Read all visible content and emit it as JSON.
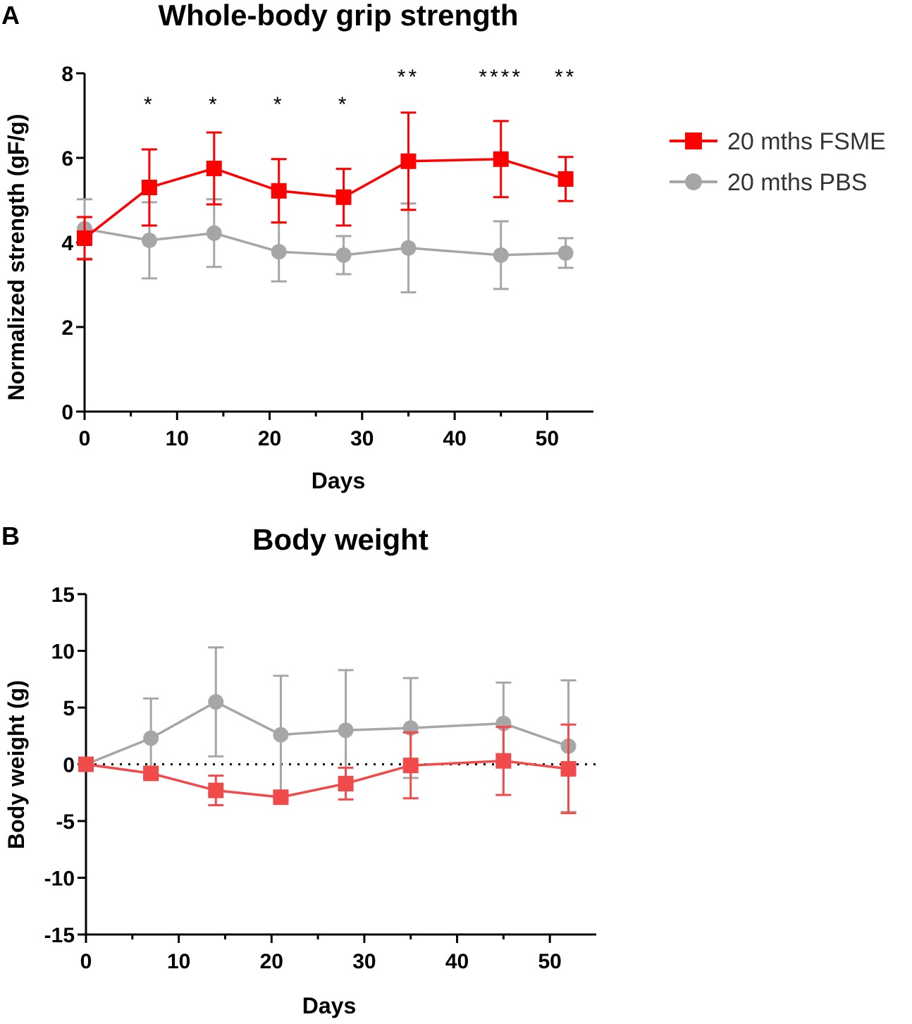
{
  "figure": {
    "panel_a_label": "A",
    "panel_b_label": "B"
  },
  "legend": {
    "entries": [
      {
        "label": "20 mths FSME",
        "color": "#ff0000",
        "marker": "square"
      },
      {
        "label": "20 mths PBS",
        "color": "#a6a6a6",
        "marker": "circle"
      }
    ]
  },
  "chart_data": [
    {
      "type": "line",
      "title": "Whole-body grip strength",
      "xlabel": "Days",
      "ylabel": "Normalized strength (gF/g)",
      "xlim": [
        0,
        55
      ],
      "ylim": [
        0,
        8
      ],
      "xticks": [
        0,
        10,
        20,
        30,
        40,
        50
      ],
      "yticks": [
        0,
        2,
        4,
        6,
        8
      ],
      "grid": false,
      "x": [
        0,
        7,
        14,
        21,
        28,
        35,
        45,
        52
      ],
      "series": [
        {
          "name": "20 mths FSME",
          "color": "#ff0000",
          "marker": "square",
          "values": [
            4.1,
            5.3,
            5.75,
            5.22,
            5.07,
            5.92,
            5.97,
            5.5
          ],
          "errors": [
            0.5,
            0.9,
            0.85,
            0.75,
            0.67,
            1.15,
            0.9,
            0.52
          ]
        },
        {
          "name": "20 mths PBS",
          "color": "#a6a6a6",
          "marker": "circle",
          "values": [
            4.32,
            4.05,
            4.22,
            3.78,
            3.7,
            3.87,
            3.7,
            3.75
          ],
          "errors": [
            0.7,
            0.9,
            0.8,
            0.7,
            0.45,
            1.05,
            0.8,
            0.35
          ]
        }
      ],
      "annotations": [
        {
          "x": 7,
          "y": 7.3,
          "text": "*"
        },
        {
          "x": 14,
          "y": 7.3,
          "text": "*"
        },
        {
          "x": 21,
          "y": 7.3,
          "text": "*"
        },
        {
          "x": 28,
          "y": 7.3,
          "text": "*"
        },
        {
          "x": 35,
          "y": 7.95,
          "text": "**"
        },
        {
          "x": 45,
          "y": 7.95,
          "text": "****"
        },
        {
          "x": 52,
          "y": 7.95,
          "text": "**"
        }
      ]
    },
    {
      "type": "line",
      "title": "Body weight",
      "xlabel": "Days",
      "ylabel": "Body weight (g)",
      "xlim": [
        0,
        55
      ],
      "ylim": [
        -15,
        15
      ],
      "xticks": [
        0,
        10,
        20,
        30,
        40,
        50
      ],
      "yticks": [
        -15,
        -10,
        -5,
        0,
        5,
        10,
        15
      ],
      "grid": false,
      "zero_line": "dotted",
      "x": [
        0,
        7,
        14,
        21,
        28,
        35,
        45,
        52
      ],
      "series": [
        {
          "name": "20 mths FSME",
          "color": "#f04a4a",
          "marker": "square",
          "values": [
            0,
            -0.8,
            -2.3,
            -2.9,
            -1.7,
            -0.1,
            0.3,
            -0.4
          ],
          "errors": [
            0,
            0.4,
            1.3,
            0.25,
            1.4,
            2.9,
            3.0,
            3.9
          ]
        },
        {
          "name": "20 mths PBS",
          "color": "#a6a6a6",
          "marker": "circle",
          "values": [
            0,
            2.3,
            5.5,
            2.6,
            3.0,
            3.2,
            3.6,
            1.6
          ],
          "errors": [
            0,
            3.5,
            4.8,
            5.2,
            5.3,
            4.4,
            3.6,
            5.8
          ]
        }
      ]
    }
  ]
}
